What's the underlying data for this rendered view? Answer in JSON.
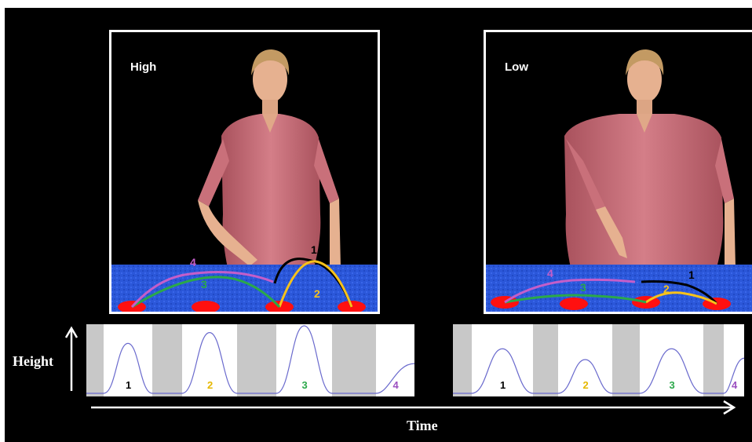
{
  "conditions": [
    {
      "label": "High",
      "trajectories": [
        {
          "label": "1",
          "color": "#000000"
        },
        {
          "label": "2",
          "color": "#f7c21a"
        },
        {
          "label": "3",
          "color": "#2ba84a"
        },
        {
          "label": "4",
          "color": "#c45ec9"
        }
      ],
      "profile": [
        {
          "label": "1",
          "color": "#000000",
          "relative_peak": 0.74
        },
        {
          "label": "2",
          "color": "#e6b800",
          "relative_peak": 0.9
        },
        {
          "label": "3",
          "color": "#2ba84a",
          "relative_peak": 1.0
        },
        {
          "label": "4",
          "color": "#9b4fc0",
          "relative_peak": 0.44
        }
      ]
    },
    {
      "label": "Low",
      "trajectories": [
        {
          "label": "1",
          "color": "#000000"
        },
        {
          "label": "2",
          "color": "#f7c21a"
        },
        {
          "label": "3",
          "color": "#2ba84a"
        },
        {
          "label": "4",
          "color": "#c45ec9"
        }
      ],
      "profile": [
        {
          "label": "1",
          "color": "#000000",
          "relative_peak": 0.66
        },
        {
          "label": "2",
          "color": "#e6b800",
          "relative_peak": 0.5
        },
        {
          "label": "3",
          "color": "#2ba84a",
          "relative_peak": 0.66
        },
        {
          "label": "4",
          "color": "#9b4fc0",
          "relative_peak": 0.52
        }
      ]
    }
  ],
  "axes": {
    "y_label": "Height",
    "x_label": "Time"
  },
  "colors": {
    "background": "#000000",
    "frame": "#ffffff",
    "table_top": "#2b57d9",
    "targets": "#ff1010",
    "profile_band": "#c8c8c8",
    "profile_curve": "#6a6acd",
    "shirt": "#c9707a",
    "skin": "#e6b190"
  }
}
